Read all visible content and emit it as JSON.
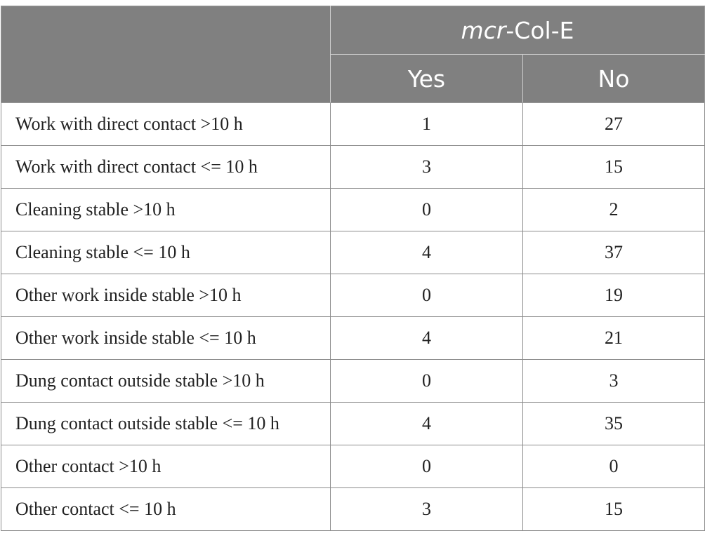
{
  "header": {
    "group_prefix": "mcr",
    "group_suffix": "-Col-E",
    "col_yes": "Yes",
    "col_no": "No"
  },
  "rows": [
    {
      "label": "Work with direct contact >10 h",
      "yes": "1",
      "no": "27"
    },
    {
      "label": "Work with direct contact <= 10 h",
      "yes": "3",
      "no": "15"
    },
    {
      "label": "Cleaning stable >10 h",
      "yes": "0",
      "no": "2"
    },
    {
      "label": "Cleaning stable <= 10 h",
      "yes": "4",
      "no": "37"
    },
    {
      "label": "Other work inside stable >10 h",
      "yes": "0",
      "no": "19"
    },
    {
      "label": "Other work inside stable <= 10 h",
      "yes": "4",
      "no": "21"
    },
    {
      "label": "Dung contact outside stable >10 h",
      "yes": "0",
      "no": "3"
    },
    {
      "label": "Dung contact outside stable <= 10 h",
      "yes": "4",
      "no": "35"
    },
    {
      "label": "Other contact >10 h",
      "yes": "0",
      "no": "0"
    },
    {
      "label": "Other contact <= 10 h",
      "yes": "3",
      "no": "15"
    }
  ],
  "colors": {
    "header_bg": "#808080",
    "header_text": "#ffffff",
    "border": "#8c8c8c"
  }
}
